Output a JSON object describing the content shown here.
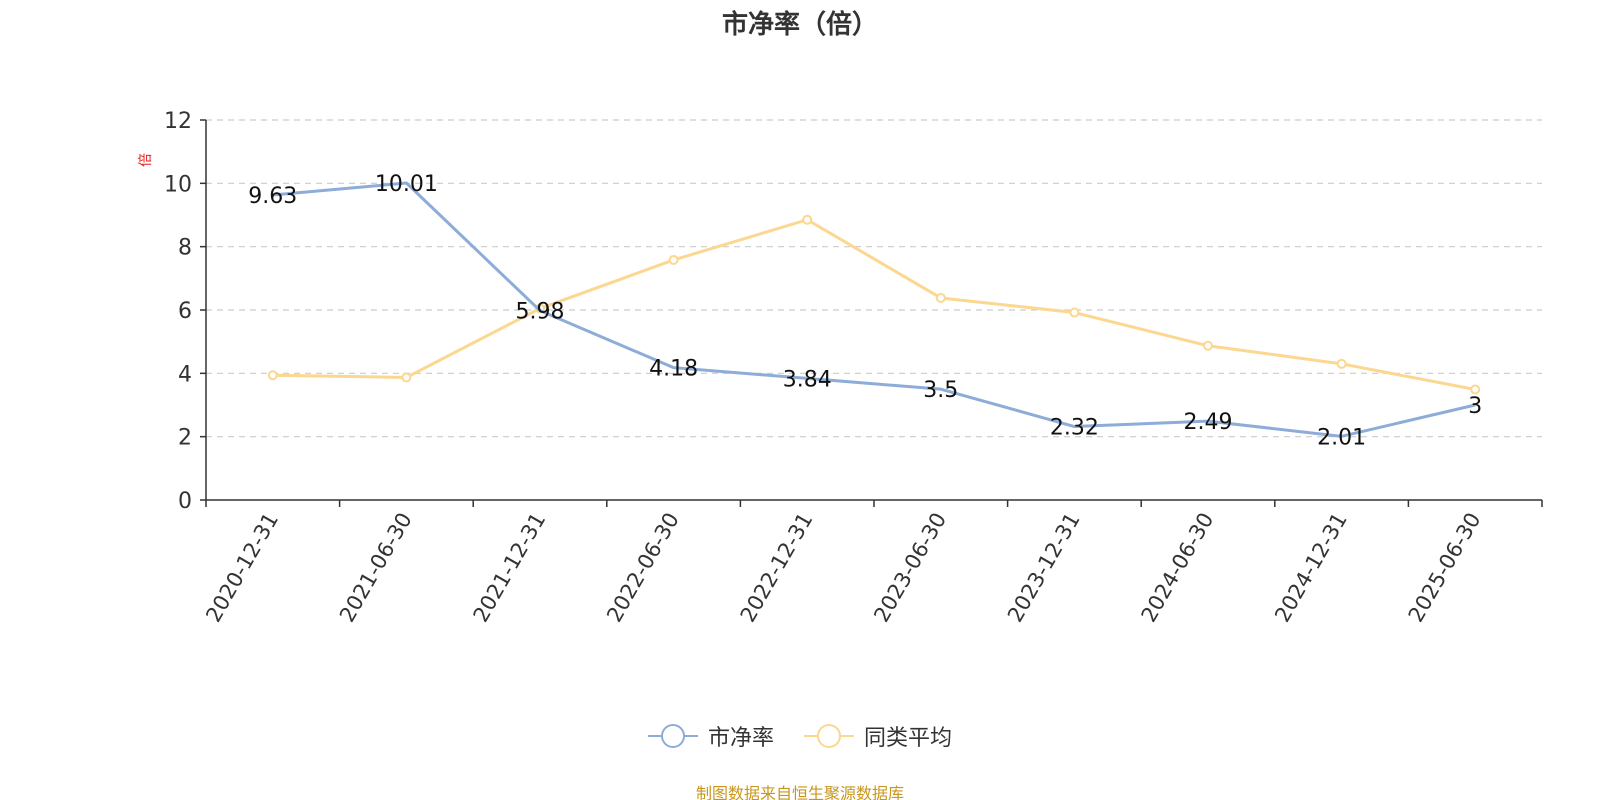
{
  "chart_data": {
    "type": "line",
    "title": "市净率（倍）",
    "ylabel": "倍",
    "xlabel": "",
    "categories": [
      "2020-12-31",
      "2021-06-30",
      "2021-12-31",
      "2022-06-30",
      "2022-12-31",
      "2023-06-30",
      "2023-12-31",
      "2024-06-30",
      "2024-12-31",
      "2025-06-30"
    ],
    "ylim": [
      0,
      12
    ],
    "yticks": [
      0,
      2,
      4,
      6,
      8,
      10,
      12
    ],
    "grid": true,
    "legend_position": "bottom",
    "series": [
      {
        "name": "市净率",
        "color": "#8eacd8",
        "values": [
          9.63,
          10.01,
          5.98,
          4.18,
          3.84,
          3.5,
          2.32,
          2.49,
          2.01,
          3
        ],
        "labels": [
          "9.63",
          "10.01",
          "5.98",
          "4.18",
          "3.84",
          "3.5",
          "2.32",
          "2.49",
          "2.01",
          "3"
        ]
      },
      {
        "name": "同类平均",
        "color": "#fbd78f",
        "values": [
          3.94,
          3.87,
          6.05,
          7.58,
          8.85,
          6.38,
          5.92,
          4.87,
          4.3,
          3.49
        ]
      }
    ]
  },
  "source_note": "制图数据来自恒生聚源数据库"
}
